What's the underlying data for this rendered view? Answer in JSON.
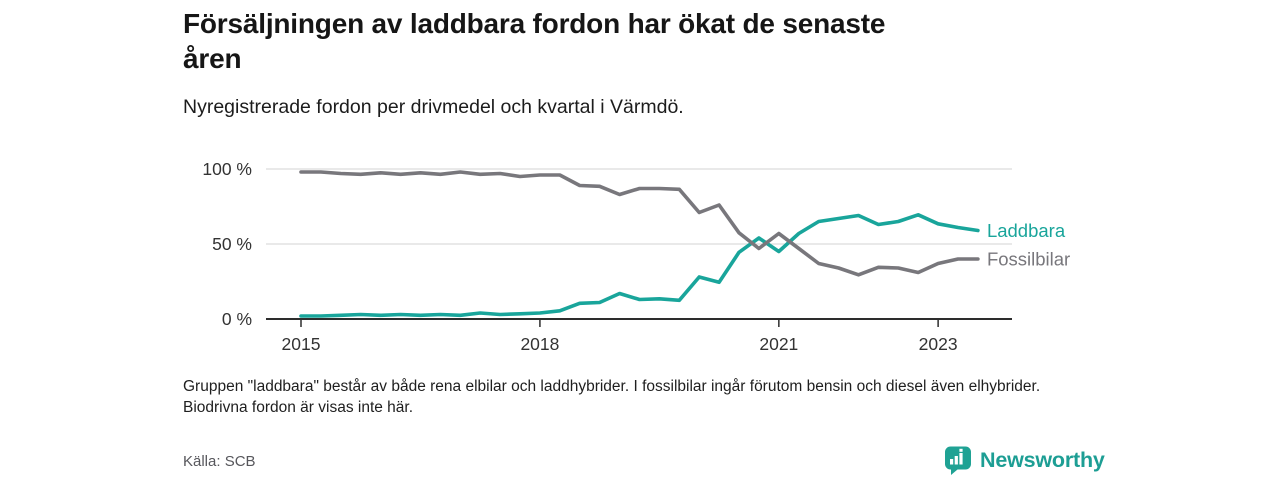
{
  "header": {
    "title_line1": "Försäljningen av laddbara fordon har ökat de senaste",
    "title_line2": "åren"
  },
  "chart_data": {
    "type": "line",
    "title": "Försäljningen av laddbara fordon har ökat de senaste åren",
    "subtitle": "Nyregistrerade fordon per drivmedel och kvartal i Värmdö.",
    "x": [
      "2015 Q1",
      "2015 Q2",
      "2015 Q3",
      "2015 Q4",
      "2016 Q1",
      "2016 Q2",
      "2016 Q3",
      "2016 Q4",
      "2017 Q1",
      "2017 Q2",
      "2017 Q3",
      "2017 Q4",
      "2018 Q1",
      "2018 Q2",
      "2018 Q3",
      "2018 Q4",
      "2019 Q1",
      "2019 Q2",
      "2019 Q3",
      "2019 Q4",
      "2020 Q1",
      "2020 Q2",
      "2020 Q3",
      "2020 Q4",
      "2021 Q1",
      "2021 Q2",
      "2021 Q3",
      "2021 Q4",
      "2022 Q1",
      "2022 Q2",
      "2022 Q3",
      "2022 Q4",
      "2023 Q1",
      "2023 Q2",
      "2023 Q3"
    ],
    "series": [
      {
        "name": "Laddbara",
        "color": "#19a59b",
        "unit": "%",
        "values": [
          2,
          2,
          2.5,
          3,
          2.5,
          3,
          2.5,
          3,
          2.5,
          4,
          3,
          3.5,
          4,
          5.5,
          10.5,
          11,
          17,
          13,
          13.5,
          12.5,
          28,
          24.5,
          44.5,
          54,
          45,
          57,
          65,
          67,
          69,
          63,
          65,
          69.5,
          63.5,
          61,
          59
        ]
      },
      {
        "name": "Fossilbilar",
        "color": "#78777c",
        "unit": "%",
        "values": [
          98,
          98,
          97,
          96.5,
          97.5,
          96.5,
          97.5,
          96.5,
          98,
          96.5,
          97,
          95,
          96,
          96,
          89,
          88.5,
          83,
          87,
          87,
          86.5,
          71,
          76,
          57.5,
          47,
          57,
          47,
          37,
          34,
          29.5,
          34.5,
          34,
          31,
          37,
          40,
          40
        ]
      }
    ],
    "y_axis": {
      "range": [
        0,
        100
      ],
      "ticks": [
        {
          "label": "100 %",
          "value": 100
        },
        {
          "label": "50 %",
          "value": 50
        },
        {
          "label": "0 %",
          "value": 0
        }
      ]
    },
    "x_axis": {
      "ticks": [
        {
          "label": "2015"
        },
        {
          "label": "2018"
        },
        {
          "label": "2021"
        },
        {
          "label": "2023"
        }
      ]
    },
    "grid": true,
    "legend_position": "line-end-labels"
  },
  "notes": {
    "footnote": "Gruppen \"laddbara\" består av både rena elbilar och laddhybrider. I fossilbilar ingår förutom bensin och diesel även elhybrider. Biodrivna fordon är visas inte här.",
    "source": "Källa: SCB"
  },
  "branding": {
    "logo_text": "Newsworthy",
    "logo_color": "#1d9e94",
    "logo_icon": "bar-chart-speech-bubble-icon"
  }
}
